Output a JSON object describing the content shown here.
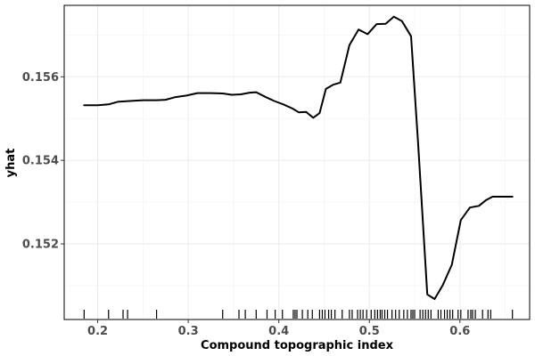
{
  "chart_data": {
    "type": "line",
    "title": "",
    "xlabel": "Compound topographic index",
    "ylabel": "yhat",
    "xlim": [
      0.163,
      0.677
    ],
    "ylim": [
      0.15019,
      0.15771
    ],
    "x_ticks": [
      0.2,
      0.3,
      0.4,
      0.5,
      0.6
    ],
    "x_tick_labels": [
      "0.2",
      "0.3",
      "0.4",
      "0.5",
      "0.6"
    ],
    "y_ticks": [
      0.152,
      0.154,
      0.156
    ],
    "y_tick_labels": [
      "0.152",
      "0.154",
      "0.156"
    ],
    "grid": true,
    "legend": "none",
    "line_color": "#000000",
    "series": [
      {
        "x": [
          0.185,
          0.2,
          0.212,
          0.222,
          0.235,
          0.25,
          0.265,
          0.275,
          0.285,
          0.298,
          0.31,
          0.325,
          0.338,
          0.348,
          0.358,
          0.368,
          0.375,
          0.385,
          0.395,
          0.405,
          0.415,
          0.422,
          0.43,
          0.438,
          0.445,
          0.452,
          0.46,
          0.468,
          0.478,
          0.488,
          0.498,
          0.508,
          0.518,
          0.527,
          0.536,
          0.546,
          0.554,
          0.564,
          0.572,
          0.581,
          0.591,
          0.601,
          0.611,
          0.621,
          0.629,
          0.636,
          0.649,
          0.658
        ],
        "y": [
          0.15532,
          0.15532,
          0.15534,
          0.1554,
          0.15542,
          0.15544,
          0.15544,
          0.15545,
          0.15551,
          0.15555,
          0.15561,
          0.15561,
          0.1556,
          0.15557,
          0.15558,
          0.15562,
          0.15563,
          0.15552,
          0.15542,
          0.15534,
          0.15524,
          0.15515,
          0.15516,
          0.15502,
          0.15513,
          0.15571,
          0.15581,
          0.15586,
          0.15676,
          0.15713,
          0.15702,
          0.15726,
          0.15727,
          0.15744,
          0.15733,
          0.15697,
          0.15434,
          0.15079,
          0.15068,
          0.15101,
          0.1515,
          0.15257,
          0.15287,
          0.15291,
          0.15305,
          0.15313,
          0.15313,
          0.15313
        ]
      }
    ],
    "rug_x": [
      0.185,
      0.212,
      0.228,
      0.233,
      0.265,
      0.338,
      0.356,
      0.363,
      0.375,
      0.387,
      0.396,
      0.404,
      0.416,
      0.418,
      0.42,
      0.426,
      0.432,
      0.437,
      0.445,
      0.448,
      0.451,
      0.455,
      0.458,
      0.462,
      0.47,
      0.478,
      0.481,
      0.487,
      0.49,
      0.493,
      0.497,
      0.502,
      0.506,
      0.509,
      0.512,
      0.514,
      0.517,
      0.52,
      0.525,
      0.529,
      0.533,
      0.538,
      0.542,
      0.546,
      0.548,
      0.55,
      0.556,
      0.559,
      0.562,
      0.565,
      0.568,
      0.576,
      0.579,
      0.583,
      0.586,
      0.589,
      0.592,
      0.598,
      0.601,
      0.609,
      0.612,
      0.614,
      0.617,
      0.625,
      0.631,
      0.634,
      0.658
    ]
  }
}
